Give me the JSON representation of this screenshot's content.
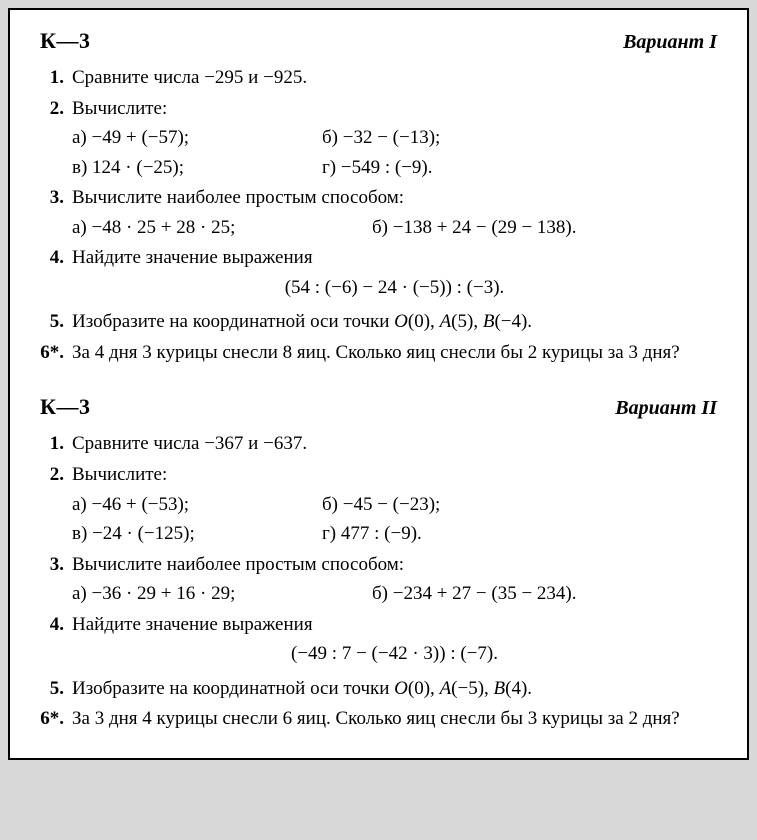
{
  "variants": [
    {
      "k_label": "К—3",
      "variant_label": "Вариант I",
      "items": [
        {
          "num": "1.",
          "text": "Сравните числа −295 и −925."
        },
        {
          "num": "2.",
          "text": "Вычислите:",
          "subs": [
            {
              "a": "а) −49 + (−57);",
              "b": "б) −32 − (−13);"
            },
            {
              "a": "в) 124 · (−25);",
              "b": "г) −549 : (−9)."
            }
          ]
        },
        {
          "num": "3.",
          "text": "Вычислите наиболее простым способом:",
          "subs_wide": [
            {
              "a": "а) −48 · 25 + 28 · 25;",
              "b": "б) −138 + 24 − (29 − 138)."
            }
          ]
        },
        {
          "num": "4.",
          "text": "Найдите значение выражения",
          "expr": "(54 : (−6) − 24 · (−5)) : (−3)."
        },
        {
          "num": "5.",
          "text_a": "Изобразите на координатной оси точки ",
          "text_i1": "O",
          "text_b": "(0), ",
          "text_i2": "A",
          "text_c": "(5), ",
          "text_i3": "B",
          "text_d": "(−4)."
        },
        {
          "num": "6*.",
          "text": "За 4 дня 3 курицы снесли 8 яиц. Сколько яиц снесли бы 2 курицы за 3 дня?"
        }
      ]
    },
    {
      "k_label": "К—3",
      "variant_label": "Вариант II",
      "items": [
        {
          "num": "1.",
          "text": "Сравните числа −367 и −637."
        },
        {
          "num": "2.",
          "text": "Вычислите:",
          "subs": [
            {
              "a": "а) −46 + (−53);",
              "b": "б) −45 − (−23);"
            },
            {
              "a": "в) −24 · (−125);",
              "b": "г) 477 : (−9)."
            }
          ]
        },
        {
          "num": "3.",
          "text": "Вычислите наиболее простым способом:",
          "subs_wide": [
            {
              "a": "а) −36 · 29 + 16 · 29;",
              "b": "б) −234 + 27 − (35 − 234)."
            }
          ]
        },
        {
          "num": "4.",
          "text": "Найдите значение выражения",
          "expr": "(−49 : 7 − (−42 · 3)) : (−7)."
        },
        {
          "num": "5.",
          "text_a": "Изобразите на координатной оси точки ",
          "text_i1": "O",
          "text_b": "(0), ",
          "text_i2": "A",
          "text_c": "(−5), ",
          "text_i3": "B",
          "text_d": "(4)."
        },
        {
          "num": "6*.",
          "text": "За 3 дня 4 курицы снесли 6 яиц. Сколько яиц снесли бы 3 курицы за 2 дня?"
        }
      ]
    }
  ]
}
